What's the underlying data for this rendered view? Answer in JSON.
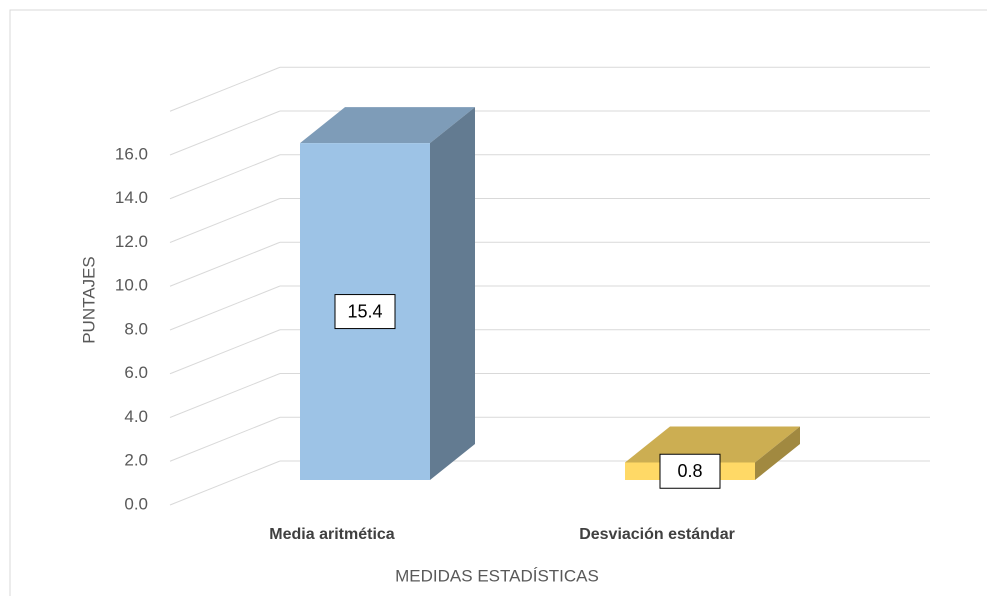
{
  "chart_data": {
    "type": "bar3d",
    "x_label": "MEDIDAS ESTADÍSTICAS",
    "y_label": "PUNTAJES",
    "categories": [
      "Media aritmética",
      "Desviación estándar"
    ],
    "values": [
      15.4,
      0.8
    ],
    "colors": [
      "#9dc3e6",
      "#ffd966"
    ],
    "ylim": [
      0,
      18
    ],
    "yticks": [
      {
        "value": 0,
        "label": "0.0"
      },
      {
        "value": 2,
        "label": "2.0"
      },
      {
        "value": 4,
        "label": "4.0"
      },
      {
        "value": 6,
        "label": "6.0"
      },
      {
        "value": 8,
        "label": "8.0"
      },
      {
        "value": 10,
        "label": "10.0"
      },
      {
        "value": 12,
        "label": "12.0"
      },
      {
        "value": 14,
        "label": "14.0"
      },
      {
        "value": 16,
        "label": "16.0"
      }
    ],
    "grid": true
  }
}
